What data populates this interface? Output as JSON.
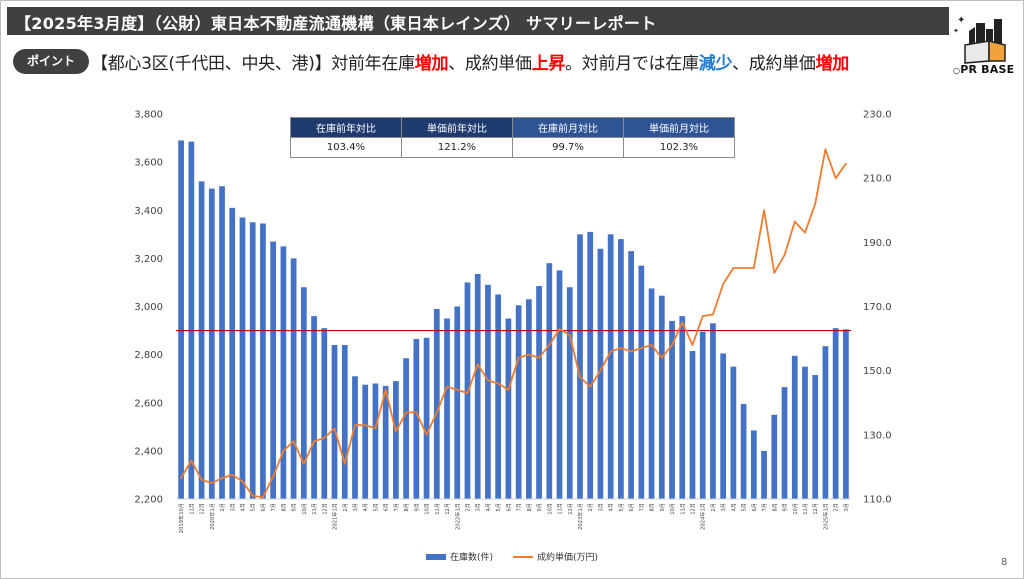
{
  "title": "【2025年3月度】（公財）東日本不動産流通機構（東日本レインズ） サマリーレポート",
  "point_badge": "ポイント",
  "headline": {
    "part1": "【都心3区(千代田、中央、港)】対前年在庫",
    "w1": "増加",
    "part2": "、成約単価",
    "w2": "上昇",
    "part3": "。対前月では在庫",
    "w3": "減少",
    "part4": "、成約単価",
    "w4": "増加"
  },
  "logo_text": "PR BASE",
  "page_number": "8",
  "kpi_table": {
    "headers": [
      "在庫前年対比",
      "単価前年対比",
      "在庫前月対比",
      "単価前月対比"
    ],
    "values": [
      "103.4%",
      "121.2%",
      "99.7%",
      "102.3%"
    ],
    "header_colors": [
      "#1f3b6e",
      "#1f3b6e",
      "#2e5496",
      "#2e5496"
    ]
  },
  "colors": {
    "bar": "#4472c4",
    "line": "#ed7d31",
    "reference_line": "#c00000",
    "title_bg": "#404040",
    "highlight_red": "#ff0000",
    "highlight_blue": "#1f7ad1"
  },
  "chart_data": {
    "type": "bar",
    "categories": [
      "2019年10月",
      "11月",
      "12月",
      "2020年1月",
      "2月",
      "3月",
      "4月",
      "5月",
      "6月",
      "7月",
      "8月",
      "9月",
      "10月",
      "11月",
      "12月",
      "2021年1月",
      "2月",
      "3月",
      "4月",
      "5月",
      "6月",
      "7月",
      "8月",
      "9月",
      "10月",
      "11月",
      "12月",
      "2022年1月",
      "2月",
      "3月",
      "4月",
      "5月",
      "6月",
      "7月",
      "8月",
      "9月",
      "10月",
      "11月",
      "12月",
      "2023年1月",
      "2月",
      "3月",
      "4月",
      "5月",
      "6月",
      "7月",
      "8月",
      "9月",
      "10月",
      "11月",
      "12月",
      "2024年1月",
      "2月",
      "3月",
      "4月",
      "5月",
      "6月",
      "7月",
      "8月",
      "9月",
      "10月",
      "11月",
      "12月",
      "2025年1月",
      "2月",
      "3月"
    ],
    "series": [
      {
        "name": "在庫数(件)",
        "axis": "left",
        "type": "bar",
        "values": [
          3690,
          3685,
          3520,
          3490,
          3500,
          3410,
          3370,
          3350,
          3345,
          3270,
          3250,
          3200,
          3080,
          2960,
          2910,
          2840,
          2840,
          2710,
          2675,
          2680,
          2670,
          2690,
          2785,
          2865,
          2870,
          2990,
          2950,
          3000,
          3100,
          3135,
          3090,
          3050,
          2950,
          3005,
          3030,
          3085,
          3180,
          3150,
          3080,
          3300,
          3310,
          3240,
          3300,
          3280,
          3230,
          3170,
          3075,
          3045,
          2940,
          2960,
          2815,
          2895,
          2930,
          2805,
          2750,
          2595,
          2485,
          2400,
          2550,
          2665,
          2795,
          2750,
          2715,
          2835,
          2910,
          2905
        ]
      },
      {
        "name": "成約単価(万円)",
        "axis": "right",
        "type": "line",
        "values": [
          116.5,
          122,
          116,
          115,
          116.5,
          117.5,
          115.5,
          111,
          110.5,
          117,
          125,
          128,
          121,
          128,
          129,
          132,
          121,
          133,
          133,
          132,
          144,
          131,
          137,
          137,
          130,
          137,
          145,
          144,
          143,
          152,
          147,
          146,
          144,
          154,
          155,
          154,
          158,
          163,
          161,
          148,
          145,
          150,
          156,
          157,
          156,
          157,
          158,
          154,
          158,
          165,
          158,
          167,
          167.5,
          177,
          182,
          182,
          182,
          200,
          180.5,
          186,
          196.5,
          193,
          202,
          219,
          210,
          214.5
        ]
      }
    ],
    "y_left": {
      "ylim": [
        2200,
        3800
      ],
      "ticks": [
        "2,200",
        "2,400",
        "2,600",
        "2,800",
        "3,000",
        "3,200",
        "3,400",
        "3,600",
        "3,800"
      ]
    },
    "y_right": {
      "ylim": [
        110,
        230
      ],
      "ticks": [
        "110.0",
        "130.0",
        "150.0",
        "170.0",
        "190.0",
        "210.0",
        "230.0"
      ]
    },
    "reference_line_value": 2900,
    "legend": {
      "position": "bottom",
      "entries": [
        "在庫数(件)",
        "成約単価(万円)"
      ]
    },
    "grid": false
  }
}
